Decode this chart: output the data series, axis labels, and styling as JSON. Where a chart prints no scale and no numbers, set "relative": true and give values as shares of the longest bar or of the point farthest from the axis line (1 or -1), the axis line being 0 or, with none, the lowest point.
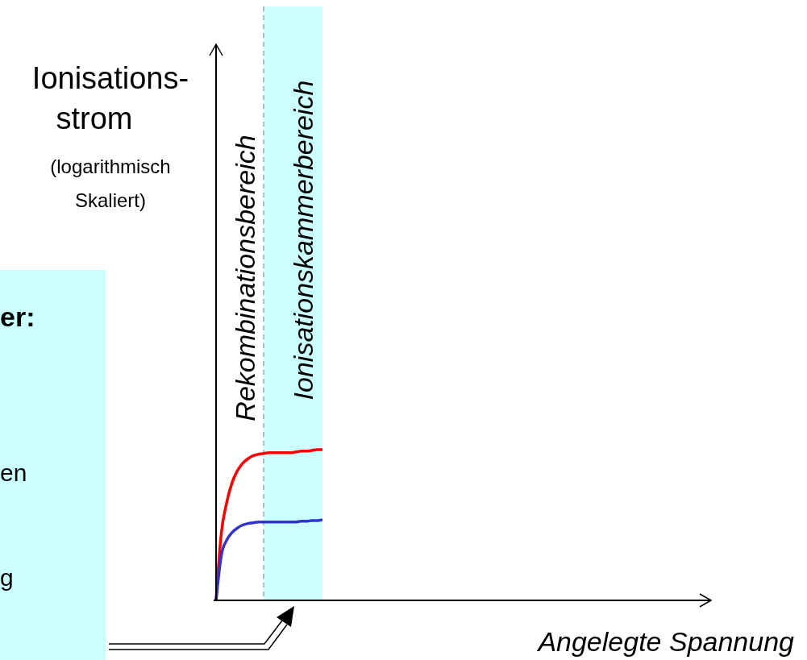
{
  "chart_data": {
    "type": "line",
    "relative": true,
    "xlabel": "Angelegte Spannung",
    "line_style": "solid",
    "categories": [
      null,
      null,
      null,
      null,
      null,
      null,
      null,
      null,
      null,
      null,
      null,
      null,
      null,
      null,
      null,
      null,
      null,
      null,
      null,
      null,
      null,
      null,
      null,
      null,
      null,
      null,
      null,
      null,
      null,
      null,
      null,
      null,
      null,
      null,
      null,
      null,
      null,
      null,
      null,
      null,
      null,
      null,
      null,
      null,
      null,
      null,
      null,
      null,
      null,
      null,
      null,
      null,
      null,
      null,
      null,
      null,
      null,
      null,
      null,
      null,
      null,
      null,
      null,
      null,
      null,
      null,
      null,
      null,
      null,
      null,
      null,
      null,
      null,
      null,
      null,
      null,
      null,
      null,
      null,
      null,
      null,
      null,
      null,
      null,
      null,
      null,
      null,
      null,
      null,
      null,
      null
    ],
    "series": [
      {
        "color": "#ff0000",
        "values": [
          0,
          0.45,
          0.65,
          0.78,
          0.86,
          0.91,
          0.94,
          0.96,
          0.97,
          0.975,
          0.98,
          0.98,
          0.98,
          0.98,
          0.98,
          0.985,
          0.99,
          0.99,
          0.995,
          1,
          1,
          null,
          null,
          null,
          null,
          null,
          null,
          null,
          null,
          null,
          null,
          null,
          null,
          null,
          null,
          null,
          null,
          null,
          null,
          null,
          null,
          null,
          null,
          null,
          null,
          null,
          null,
          null,
          null,
          null,
          null,
          null,
          null,
          null,
          null,
          null,
          null,
          null,
          null,
          null,
          null,
          null,
          null,
          null,
          null,
          null,
          null,
          null,
          null,
          null,
          null,
          null,
          null,
          null,
          null,
          null,
          null,
          null,
          null,
          null,
          null,
          null,
          null,
          null,
          null,
          null,
          null,
          null,
          null,
          null,
          null
        ]
      },
      {
        "color": "#3333cc",
        "values": [
          0,
          0.3,
          0.4,
          0.45,
          0.48,
          0.5,
          0.51,
          0.515,
          0.52,
          0.52,
          0.52,
          0.52,
          0.52,
          0.52,
          0.52,
          0.52,
          0.525,
          0.525,
          0.53,
          0.53,
          0.535,
          null,
          null,
          null,
          null,
          null,
          null,
          null,
          null,
          null,
          null,
          null,
          null,
          null,
          null,
          null,
          null,
          null,
          null,
          null,
          null,
          null,
          null,
          null,
          null,
          null,
          null,
          null,
          null,
          null,
          null,
          null,
          null,
          null,
          null,
          null,
          null,
          null,
          null,
          null,
          null,
          null,
          null,
          null,
          null,
          null,
          null,
          null,
          null,
          null,
          null,
          null,
          null,
          null,
          null,
          null,
          null,
          null,
          null,
          null,
          null,
          null,
          null,
          null,
          null,
          null,
          null,
          null,
          null,
          null,
          null
        ]
      }
    ],
    "annotations": [
      "Ionisations-\nstrom",
      "(logarithmisch\nSkaliert)",
      "er:",
      "en",
      "g",
      "Rekombinationsbereich",
      "Ionisationskammerbereich"
    ]
  }
}
